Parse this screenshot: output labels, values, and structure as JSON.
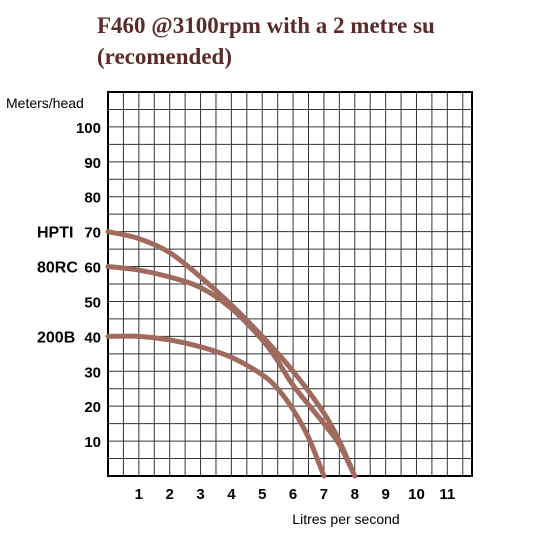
{
  "title_line1": "F460 @3100rpm with a 2 metre su",
  "title_line2": "(recomended)",
  "chart_data": {
    "type": "line",
    "title": "F460 @3100rpm with a 2 metre su (recomended)",
    "ylabel": "Meters/head",
    "xlabel": "Litres per second",
    "x_ticks": [
      "1",
      "2",
      "3",
      "4",
      "5",
      "6",
      "7",
      "8",
      "9",
      "10",
      "11"
    ],
    "y_ticks": [
      "10",
      "20",
      "30",
      "40",
      "50",
      "60",
      "70",
      "80",
      "90",
      "100"
    ],
    "xlim": [
      0,
      11.8
    ],
    "ylim": [
      0,
      110
    ],
    "grid": true,
    "curve_color": "#a06a5e",
    "series": [
      {
        "name": "HPTI",
        "x": [
          0,
          1,
          2,
          3,
          4,
          5,
          6,
          7,
          7.5,
          8
        ],
        "y": [
          70,
          68,
          64,
          57,
          49,
          40,
          30,
          18,
          10,
          0
        ]
      },
      {
        "name": "80RC",
        "x": [
          0,
          1,
          2,
          3,
          4,
          5,
          5.5,
          6,
          7,
          7.5,
          8
        ],
        "y": [
          60,
          59,
          57,
          54,
          48,
          39,
          33,
          26,
          15,
          9,
          0
        ]
      },
      {
        "name": "200B",
        "x": [
          0,
          1,
          2,
          3,
          4,
          5,
          5.5,
          6,
          6.5,
          7
        ],
        "y": [
          40,
          40,
          39,
          37,
          34,
          29,
          25,
          19,
          11,
          0
        ]
      }
    ]
  }
}
